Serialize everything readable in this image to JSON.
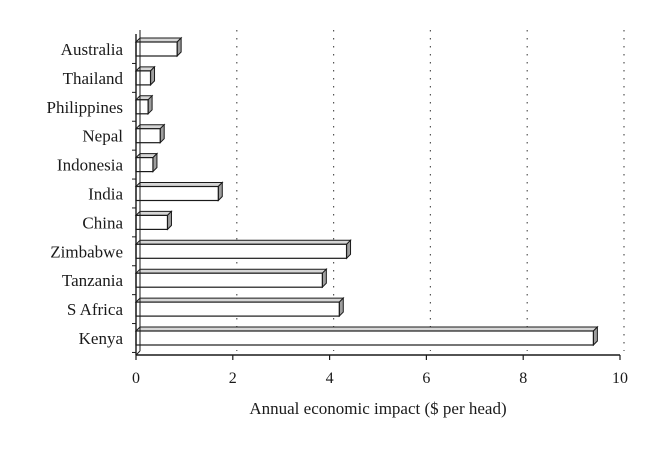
{
  "chart_data": {
    "type": "bar",
    "orientation": "horizontal",
    "style": "3d",
    "categories": [
      "Australia",
      "Thailand",
      "Philippines",
      "Nepal",
      "Indonesia",
      "India",
      "China",
      "Zimbabwe",
      "Tanzania",
      "S Africa",
      "Kenya"
    ],
    "values": [
      0.85,
      0.3,
      0.25,
      0.5,
      0.35,
      1.7,
      0.65,
      4.35,
      3.85,
      4.2,
      9.45
    ],
    "title": "",
    "xlabel": "Annual economic impact ($ per head)",
    "ylabel": "",
    "xlim": [
      0,
      10
    ],
    "x_ticks": [
      "0",
      "2",
      "4",
      "6",
      "8",
      "10"
    ],
    "grid": "vertical-dotted",
    "colors": {
      "bar_face": "#ffffff",
      "bar_side": "#9e9e9e",
      "bar_top": "#d6d6d6",
      "outline": "#1a1a1a",
      "grid": "#555555"
    }
  }
}
